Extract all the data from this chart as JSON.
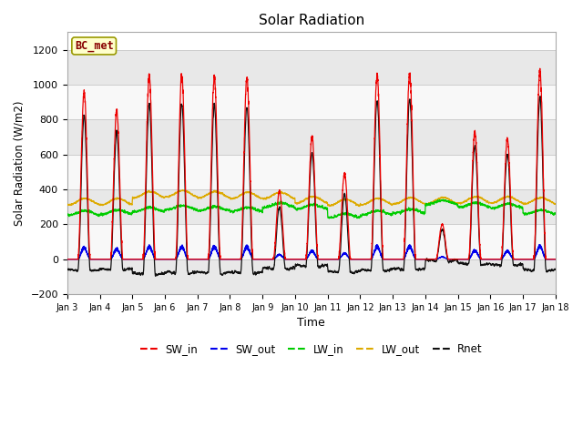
{
  "title": "Solar Radiation",
  "xlabel": "Time",
  "ylabel": "Solar Radiation (W/m2)",
  "ylim": [
    -200,
    1300
  ],
  "yticks": [
    -200,
    0,
    200,
    400,
    600,
    800,
    1000,
    1200
  ],
  "xtick_labels": [
    "Jan 3",
    "Jan 4",
    "Jan 5",
    "Jan 6",
    "Jan 7",
    "Jan 8",
    "Jan 9",
    "Jan 10",
    "Jan 11",
    "Jan 12",
    "Jan 13",
    "Jan 14",
    "Jan 15",
    "Jan 16",
    "Jan 17",
    "Jan 18"
  ],
  "colors": {
    "SW_in": "#ee0000",
    "SW_out": "#0000ee",
    "LW_in": "#00cc00",
    "LW_out": "#ddaa00",
    "Rnet": "#111111"
  },
  "label_box": "BC_met",
  "label_box_color": "#ffffcc",
  "label_box_edge": "#999900",
  "bg_bands": [
    "#e8e8e8",
    "#f8f8f8"
  ],
  "fig_bg": "#ffffff",
  "plot_bg": "#ffffff"
}
